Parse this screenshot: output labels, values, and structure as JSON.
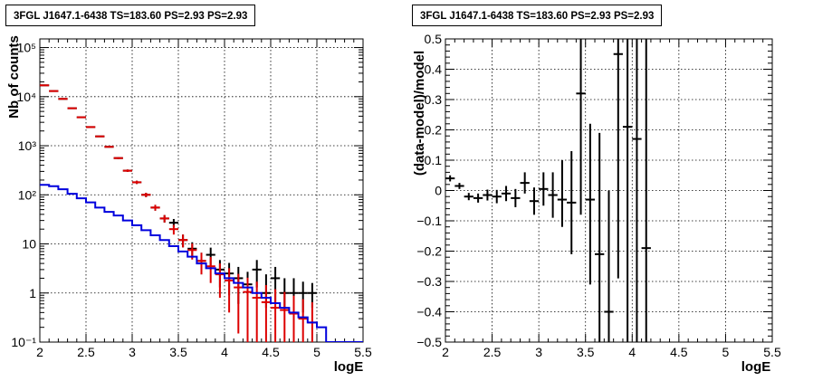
{
  "chart_data": [
    {
      "type": "scatter",
      "title": "3FGL J1647.1-6438 TS=183.60 PS=2.93 PS=2.93",
      "xlabel": "logE",
      "ylabel": "Nb of counts",
      "xlim": [
        2,
        5.5
      ],
      "ylim": [
        0.1,
        150000
      ],
      "yscale": "log",
      "grid": true,
      "x_ticks": [
        2,
        2.5,
        3,
        3.5,
        4,
        4.5,
        5,
        5.5
      ],
      "x_tick_labels": [
        "2",
        "2.5",
        "3",
        "3.5",
        "4",
        "4.5",
        "5",
        "5.5"
      ],
      "y_ticks": [
        0.1,
        1,
        10,
        100,
        1000,
        10000,
        100000
      ],
      "y_tick_labels": [
        "10⁻¹",
        "1",
        "10",
        "10²",
        "10³",
        "10⁴",
        "10⁵"
      ],
      "series": [
        {
          "color": "#000000",
          "style": "errorbar",
          "x": [
            2.05,
            2.15,
            2.25,
            2.35,
            2.45,
            2.55,
            2.65,
            2.75,
            2.85,
            2.95,
            3.05,
            3.15,
            3.25,
            3.35,
            3.45,
            3.55,
            3.65,
            3.75,
            3.85,
            3.95,
            4.05,
            4.15,
            4.25,
            4.35,
            4.45,
            4.55,
            4.65,
            4.75,
            4.85,
            4.95
          ],
          "y": [
            17000,
            13000,
            9000,
            5800,
            3800,
            2400,
            1550,
            950,
            560,
            310,
            180,
            100,
            55,
            33,
            27,
            12,
            8,
            4.5,
            6,
            3,
            2.5,
            2,
            1.5,
            3,
            1,
            2,
            1,
            1,
            1,
            1
          ],
          "yerr_low": [
            130,
            115,
            95,
            75,
            62,
            49,
            39,
            31,
            24,
            17.6,
            13.4,
            10,
            7.4,
            5.7,
            5.2,
            3.5,
            2.8,
            2.1,
            2.4,
            1.7,
            1.6,
            1.4,
            1.2,
            1.7,
            0.5,
            1.4,
            0.5,
            0.6,
            0.6,
            0.5
          ],
          "yerr_high": [
            130,
            115,
            95,
            75,
            62,
            49,
            39,
            31,
            24,
            17.6,
            13.4,
            10,
            7.4,
            5.7,
            5.2,
            3.5,
            2.8,
            2.1,
            2.4,
            1.7,
            1.6,
            1.4,
            1.2,
            1.7,
            1.4,
            1.4,
            1,
            1,
            0.7,
            0.6
          ]
        },
        {
          "color": "#dd0000",
          "style": "errorbar",
          "x": [
            2.05,
            2.15,
            2.25,
            2.35,
            2.45,
            2.55,
            2.65,
            2.75,
            2.85,
            2.95,
            3.05,
            3.15,
            3.25,
            3.35,
            3.45,
            3.55,
            3.65,
            3.75,
            3.85,
            3.95,
            4.05,
            4.15,
            4.25,
            4.35,
            4.45,
            4.55,
            4.65,
            4.75,
            4.85,
            4.95
          ],
          "y": [
            17000,
            13000,
            9000,
            5800,
            3800,
            2400,
            1550,
            950,
            560,
            310,
            180,
            100,
            55,
            33,
            20,
            12,
            7.5,
            4.5,
            3.5,
            2.4,
            1.8,
            1.3,
            1.05,
            0.8,
            0.65,
            0.5,
            0.45,
            0.38,
            0.3,
            0.25
          ],
          "yerr_low": [
            130,
            115,
            95,
            75,
            62,
            49,
            39,
            31,
            24,
            17.6,
            13.4,
            10,
            7.4,
            5.7,
            4.5,
            3.5,
            2.7,
            2.1,
            1.9,
            1.6,
            1.4,
            1.15,
            1.0,
            0.79,
            0.64,
            0.49,
            0.44,
            0.37,
            0.29,
            0.24
          ],
          "yerr_high": [
            130,
            115,
            95,
            75,
            62,
            49,
            39,
            31,
            24,
            17.6,
            13.4,
            10,
            7.4,
            5.7,
            4.5,
            3.5,
            2.7,
            2.1,
            1.9,
            1.6,
            1.4,
            1.15,
            1.0,
            0.9,
            0.8,
            0.7,
            0.6,
            0.5,
            0.45,
            0.4
          ]
        },
        {
          "color": "#0000dd",
          "style": "step",
          "x": [
            2.0,
            2.1,
            2.2,
            2.3,
            2.4,
            2.5,
            2.6,
            2.7,
            2.8,
            2.9,
            3.0,
            3.1,
            3.2,
            3.3,
            3.4,
            3.5,
            3.6,
            3.7,
            3.8,
            3.9,
            4.0,
            4.1,
            4.2,
            4.3,
            4.4,
            4.5,
            4.6,
            4.7,
            4.8,
            4.9,
            5.0,
            5.1,
            5.2,
            5.3,
            5.4
          ],
          "y": [
            160,
            150,
            130,
            105,
            85,
            70,
            55,
            45,
            38,
            30,
            24,
            19,
            15,
            12,
            9,
            7,
            5.5,
            4,
            3.2,
            2.5,
            2,
            1.6,
            1.3,
            1.0,
            0.8,
            0.62,
            0.5,
            0.4,
            0.32,
            0.25,
            0.2,
            0.1,
            0.1,
            0.1,
            0.1
          ]
        }
      ]
    },
    {
      "type": "scatter",
      "title": "3FGL J1647.1-6438 TS=183.60 PS=2.93 PS=2.93",
      "xlabel": "logE",
      "ylabel": "(data-model)/model",
      "xlim": [
        2,
        5.5
      ],
      "ylim": [
        -0.5,
        0.5
      ],
      "grid": true,
      "x_ticks": [
        2,
        2.5,
        3,
        3.5,
        4,
        4.5,
        5,
        5.5
      ],
      "x_tick_labels": [
        "2",
        "2.5",
        "3",
        "3.5",
        "4",
        "4.5",
        "5",
        "5.5"
      ],
      "y_ticks": [
        -0.5,
        -0.4,
        -0.3,
        -0.2,
        -0.1,
        0,
        0.1,
        0.2,
        0.3,
        0.4,
        0.5
      ],
      "y_tick_labels": [
        "−0.5",
        "−0.4",
        "−0.3",
        "−0.2",
        "−0.1",
        "0",
        "0.1",
        "0.2",
        "0.3",
        "0.4",
        "0.5"
      ],
      "series": [
        {
          "color": "#000000",
          "style": "errorbar",
          "x": [
            2.05,
            2.15,
            2.25,
            2.35,
            2.45,
            2.55,
            2.65,
            2.75,
            2.85,
            2.95,
            3.05,
            3.15,
            3.25,
            3.35,
            3.45,
            3.55,
            3.65,
            3.75,
            3.85,
            3.95,
            4.05,
            4.15
          ],
          "y": [
            0.04,
            0.015,
            -0.02,
            -0.025,
            -0.015,
            -0.02,
            -0.01,
            -0.025,
            0.025,
            -0.035,
            0.005,
            -0.015,
            -0.03,
            -0.04,
            0.32,
            -0.03,
            -0.21,
            -0.4,
            0.45,
            0.21,
            0.17,
            -0.19
          ],
          "yerr_low": [
            0.01,
            0.01,
            0.012,
            0.015,
            0.018,
            0.022,
            0.025,
            0.03,
            0.035,
            0.045,
            0.055,
            0.075,
            0.09,
            0.17,
            0.4,
            0.28,
            0.35,
            0.35,
            0.74,
            0.72,
            0.7,
            0.35
          ],
          "yerr_high": [
            0.01,
            0.01,
            0.012,
            0.015,
            0.018,
            0.022,
            0.025,
            0.03,
            0.035,
            0.045,
            0.055,
            0.075,
            0.13,
            0.17,
            0.4,
            0.25,
            0.4,
            0.4,
            0.6,
            0.55,
            0.5,
            0.69
          ]
        }
      ]
    }
  ]
}
